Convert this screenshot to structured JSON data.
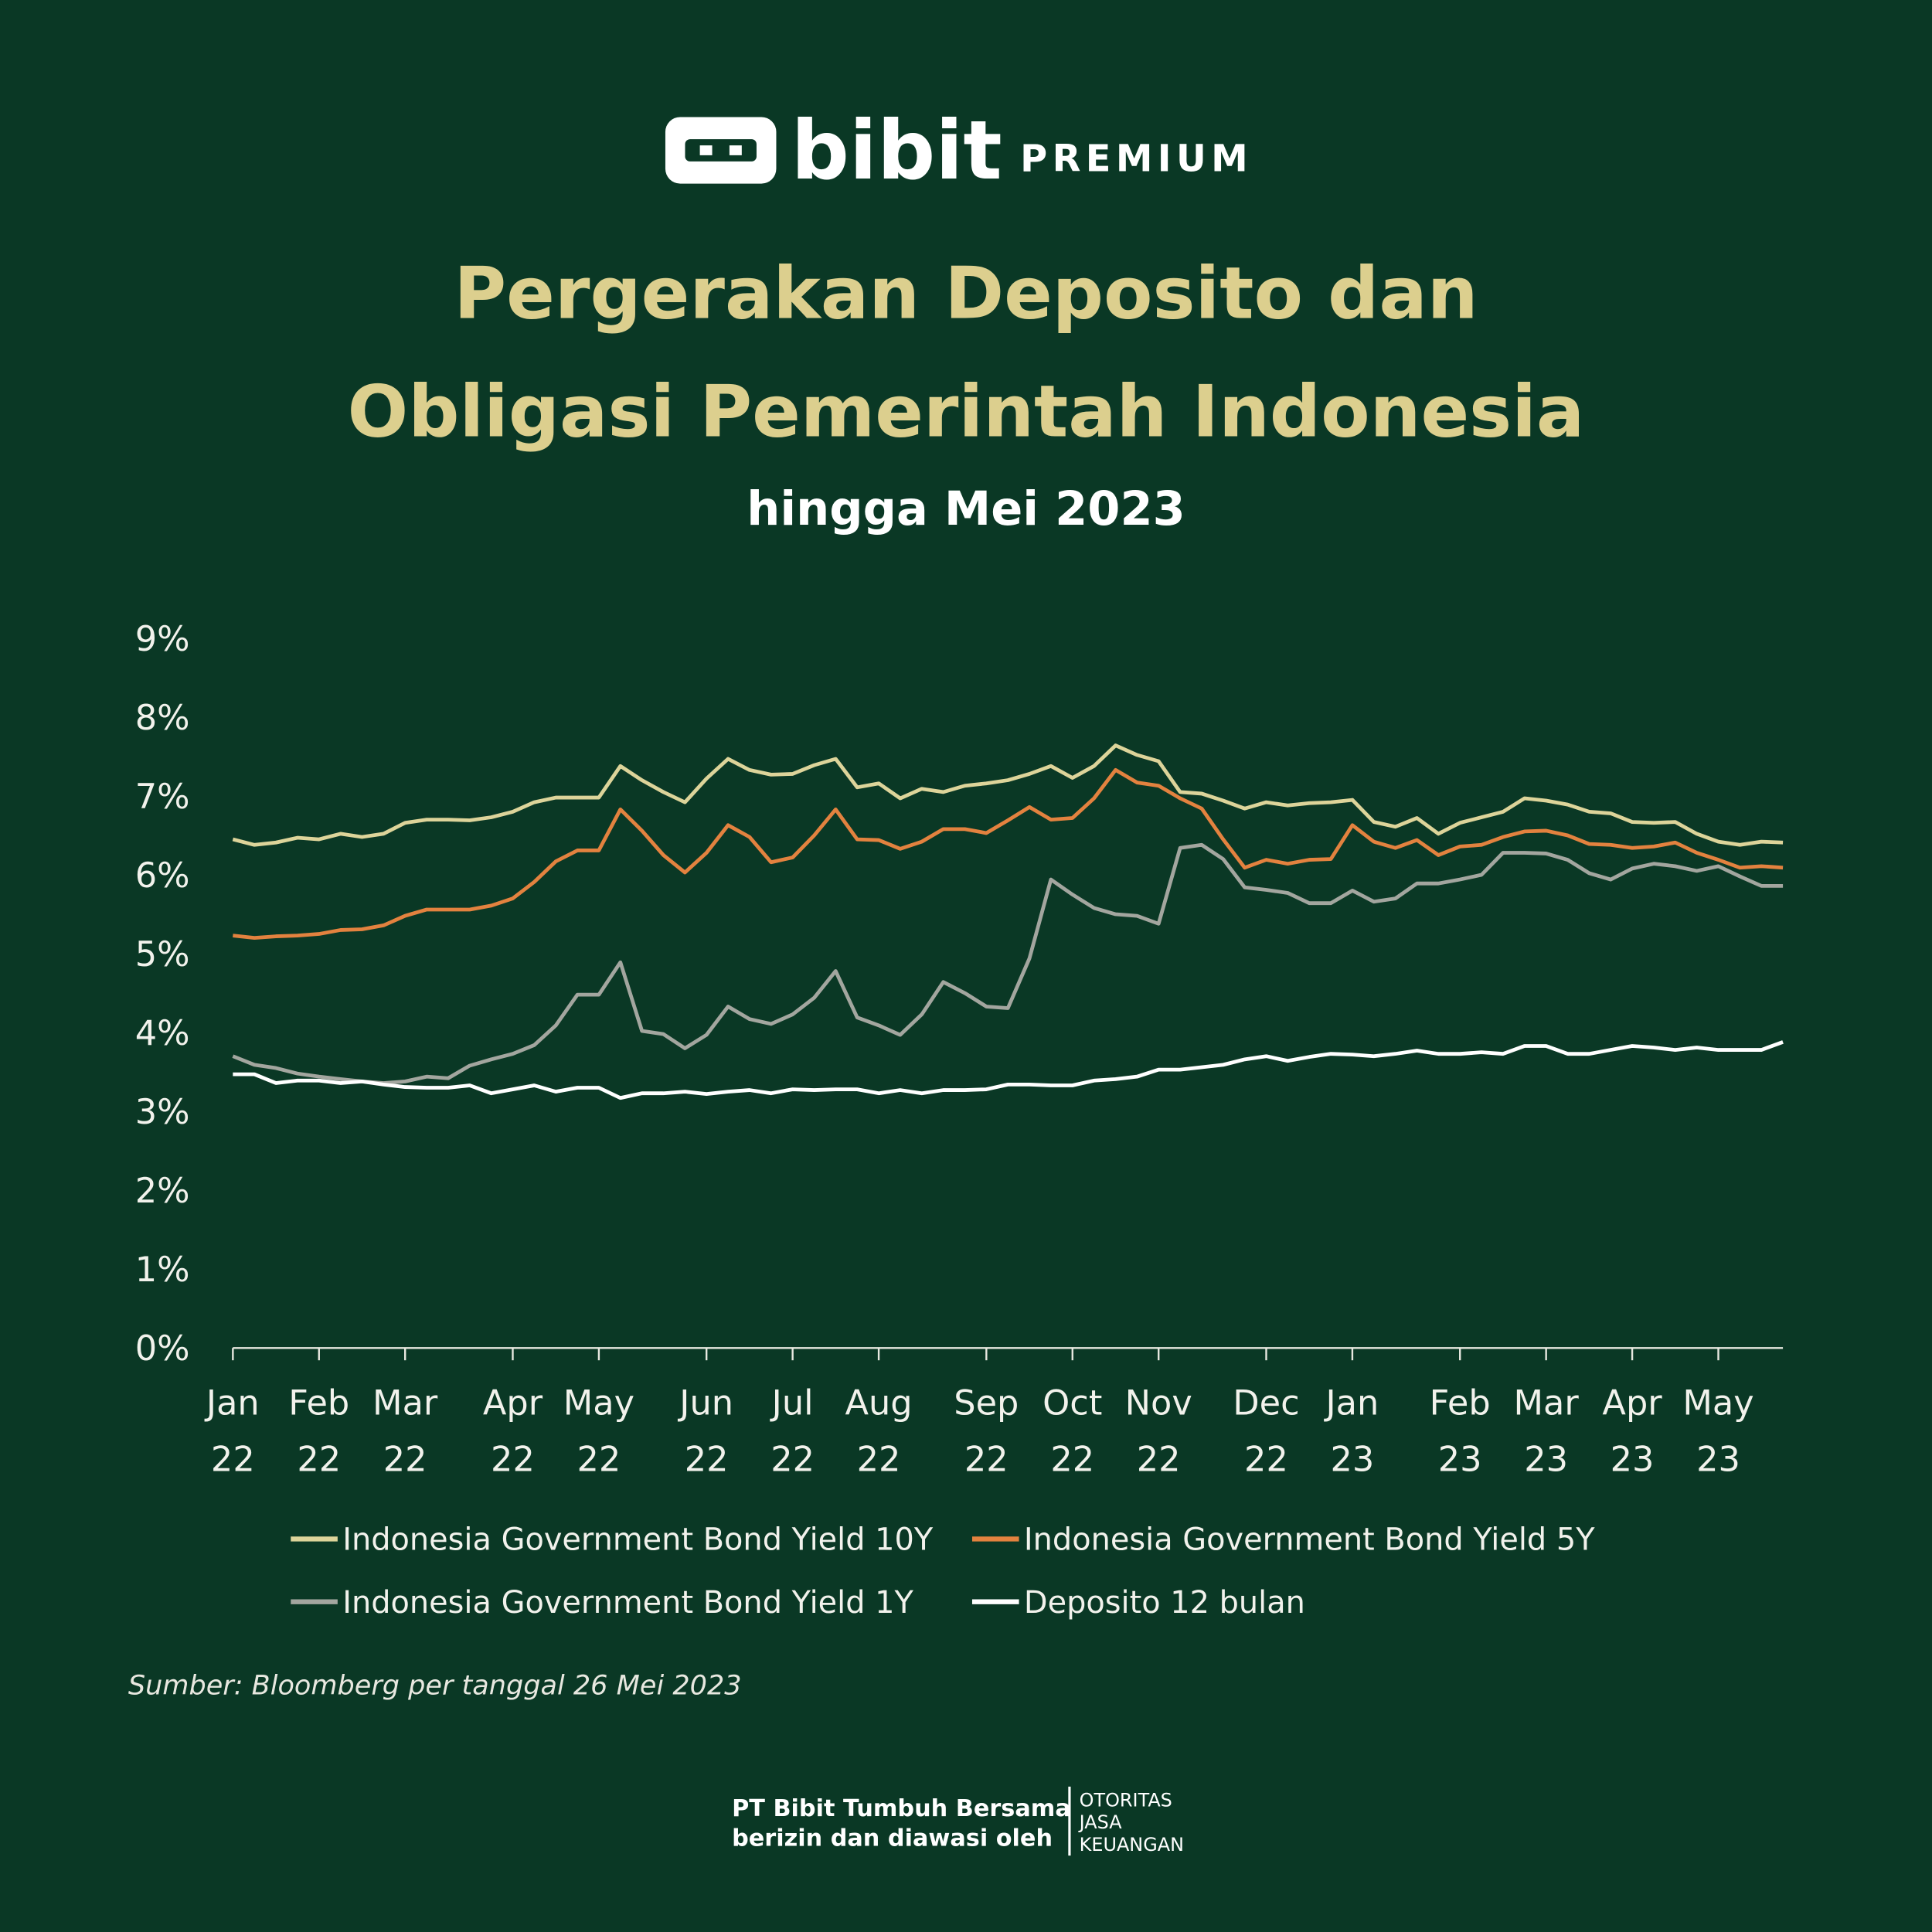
{
  "header": {
    "brand": "bibit",
    "tier": "PREMIUM"
  },
  "chart_data": {
    "type": "line",
    "title": [
      "Pergerakan Deposito dan",
      "Obligasi Pemerintah Indonesia"
    ],
    "subtitle": "hingga Mei 2023",
    "source": "Sumber: Bloomberg per tanggal 26 Mei 2023",
    "categories": [
      "Jan 22",
      null,
      null,
      null,
      "Feb 22",
      null,
      null,
      null,
      "Mar 22",
      null,
      null,
      null,
      null,
      "Apr 22",
      null,
      null,
      null,
      "May 22",
      null,
      null,
      null,
      null,
      "Jun 22",
      null,
      null,
      null,
      "Jul 22",
      null,
      null,
      null,
      "Aug 22",
      null,
      null,
      null,
      null,
      "Sep 22",
      null,
      null,
      null,
      "Oct 22",
      null,
      null,
      null,
      "Nov 22",
      null,
      null,
      null,
      null,
      "Dec 22",
      null,
      null,
      null,
      "Jan 23",
      null,
      null,
      null,
      null,
      "Feb 23",
      null,
      null,
      null,
      "Mar 23",
      null,
      null,
      null,
      "Apr 23",
      null,
      null,
      null,
      "May 23",
      null,
      null,
      null
    ],
    "ylim": [
      0,
      9
    ],
    "yticks": [
      {
        "value": 0,
        "label": "0%"
      },
      {
        "value": 1,
        "label": "1%"
      },
      {
        "value": 2,
        "label": "2%"
      },
      {
        "value": 3,
        "label": "3%"
      },
      {
        "value": 4,
        "label": "4%"
      },
      {
        "value": 5,
        "label": "5%"
      },
      {
        "value": 6,
        "label": "6%"
      },
      {
        "value": 7,
        "label": "7%"
      },
      {
        "value": 8,
        "label": "8%"
      },
      {
        "value": 9,
        "label": "9%"
      }
    ],
    "grid": false,
    "series": [
      {
        "name": "Indonesia Government Bond Yield 10Y",
        "color": "#ddd49a",
        "values": [
          6.45,
          6.38,
          6.41,
          6.47,
          6.45,
          6.52,
          6.48,
          6.52,
          6.66,
          6.7,
          6.7,
          6.69,
          6.73,
          6.8,
          6.92,
          6.98,
          6.98,
          6.98,
          7.38,
          7.2,
          7.05,
          6.92,
          7.22,
          7.47,
          7.33,
          7.27,
          7.28,
          7.39,
          7.47,
          7.11,
          7.16,
          6.97,
          7.09,
          7.05,
          7.13,
          7.16,
          7.2,
          7.28,
          7.38,
          7.23,
          7.38,
          7.64,
          7.52,
          7.44,
          7.05,
          7.03,
          6.94,
          6.84,
          6.92,
          6.88,
          6.91,
          6.92,
          6.95,
          6.67,
          6.61,
          6.72,
          6.52,
          6.66,
          6.73,
          6.8,
          6.97,
          6.94,
          6.89,
          6.8,
          6.78,
          6.67,
          6.66,
          6.67,
          6.52,
          6.42,
          6.38,
          6.42,
          6.41
        ]
      },
      {
        "name": "Indonesia Government Bond Yield 5Y",
        "color": "#e3823f",
        "values": [
          5.23,
          5.2,
          5.22,
          5.23,
          5.25,
          5.3,
          5.31,
          5.36,
          5.48,
          5.56,
          5.56,
          5.56,
          5.61,
          5.7,
          5.91,
          6.17,
          6.31,
          6.31,
          6.83,
          6.56,
          6.25,
          6.03,
          6.28,
          6.63,
          6.48,
          6.16,
          6.22,
          6.5,
          6.83,
          6.45,
          6.44,
          6.33,
          6.42,
          6.58,
          6.58,
          6.53,
          6.69,
          6.86,
          6.7,
          6.72,
          6.97,
          7.33,
          7.17,
          7.13,
          6.97,
          6.84,
          6.45,
          6.09,
          6.19,
          6.14,
          6.19,
          6.2,
          6.63,
          6.42,
          6.34,
          6.44,
          6.25,
          6.36,
          6.38,
          6.48,
          6.55,
          6.56,
          6.5,
          6.39,
          6.38,
          6.34,
          6.36,
          6.41,
          6.28,
          6.19,
          6.09,
          6.11,
          6.09
        ]
      },
      {
        "name": "Indonesia Government Bond Yield 1Y",
        "color": "#a3a69f",
        "values": [
          3.7,
          3.59,
          3.55,
          3.48,
          3.44,
          3.41,
          3.38,
          3.36,
          3.38,
          3.44,
          3.42,
          3.58,
          3.66,
          3.73,
          3.84,
          4.09,
          4.48,
          4.48,
          4.89,
          4.02,
          3.98,
          3.8,
          3.97,
          4.33,
          4.17,
          4.11,
          4.23,
          4.44,
          4.78,
          4.19,
          4.09,
          3.97,
          4.23,
          4.64,
          4.5,
          4.33,
          4.31,
          4.94,
          5.94,
          5.75,
          5.58,
          5.5,
          5.48,
          5.38,
          6.34,
          6.38,
          6.2,
          5.84,
          5.81,
          5.77,
          5.64,
          5.64,
          5.8,
          5.66,
          5.7,
          5.89,
          5.89,
          5.94,
          6.0,
          6.28,
          6.28,
          6.27,
          6.19,
          6.02,
          5.94,
          6.08,
          6.14,
          6.11,
          6.05,
          6.11,
          5.98,
          5.86,
          5.86
        ]
      },
      {
        "name": "Deposito 12 bulan",
        "color": "#ffffff",
        "values": [
          3.47,
          3.47,
          3.36,
          3.39,
          3.39,
          3.36,
          3.38,
          3.34,
          3.31,
          3.3,
          3.3,
          3.33,
          3.23,
          3.28,
          3.33,
          3.25,
          3.3,
          3.3,
          3.17,
          3.23,
          3.23,
          3.25,
          3.22,
          3.25,
          3.27,
          3.23,
          3.28,
          3.27,
          3.28,
          3.28,
          3.23,
          3.27,
          3.23,
          3.27,
          3.27,
          3.28,
          3.34,
          3.34,
          3.33,
          3.33,
          3.39,
          3.41,
          3.44,
          3.53,
          3.53,
          3.56,
          3.59,
          3.66,
          3.7,
          3.64,
          3.69,
          3.73,
          3.72,
          3.7,
          3.73,
          3.77,
          3.73,
          3.73,
          3.75,
          3.73,
          3.83,
          3.83,
          3.73,
          3.73,
          3.78,
          3.83,
          3.81,
          3.78,
          3.81,
          3.78,
          3.78,
          3.78,
          3.88
        ]
      }
    ]
  },
  "footer": {
    "company": "PT Bibit Tumbuh Bersama",
    "note": "berizin dan diawasi oleh",
    "regulator": [
      "OTORITAS",
      "JASA",
      "KEUANGAN"
    ]
  }
}
